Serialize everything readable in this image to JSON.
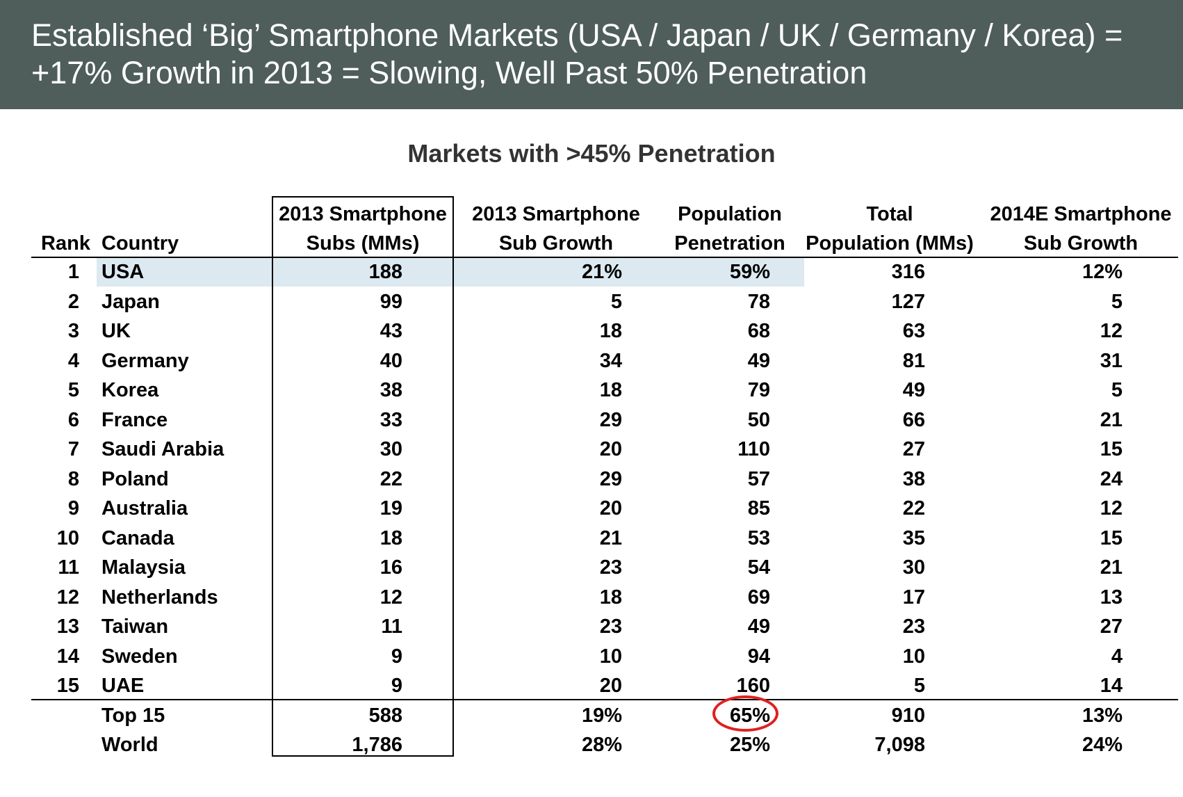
{
  "header": {
    "line1": "Established ‘Big’ Smartphone Markets (USA / Japan / UK / Germany / Korea) =",
    "line2": "+17% Growth in 2013 = Slowing, Well Past 50% Penetration"
  },
  "subtitle": "Markets with >45% Penetration",
  "columns": {
    "rank": "Rank",
    "country": "Country",
    "subs": [
      "2013 Smartphone",
      "Subs (MMs)"
    ],
    "growth": [
      "2013 Smartphone",
      "Sub Growth"
    ],
    "penetration": [
      "Population",
      "Penetration"
    ],
    "population": [
      "Total",
      "Population (MMs)"
    ],
    "growth2014": [
      "2014E Smartphone",
      "Sub Growth"
    ]
  },
  "rows": [
    {
      "rank": "1",
      "country": "USA",
      "subs": "188",
      "growth": "21%",
      "penetration": "59%",
      "population": "316",
      "growth2014": "12%"
    },
    {
      "rank": "2",
      "country": "Japan",
      "subs": "99",
      "growth": "5",
      "penetration": "78",
      "population": "127",
      "growth2014": "5"
    },
    {
      "rank": "3",
      "country": "UK",
      "subs": "43",
      "growth": "18",
      "penetration": "68",
      "population": "63",
      "growth2014": "12"
    },
    {
      "rank": "4",
      "country": "Germany",
      "subs": "40",
      "growth": "34",
      "penetration": "49",
      "population": "81",
      "growth2014": "31"
    },
    {
      "rank": "5",
      "country": "Korea",
      "subs": "38",
      "growth": "18",
      "penetration": "79",
      "population": "49",
      "growth2014": "5"
    },
    {
      "rank": "6",
      "country": "France",
      "subs": "33",
      "growth": "29",
      "penetration": "50",
      "population": "66",
      "growth2014": "21"
    },
    {
      "rank": "7",
      "country": "Saudi Arabia",
      "subs": "30",
      "growth": "20",
      "penetration": "110",
      "population": "27",
      "growth2014": "15"
    },
    {
      "rank": "8",
      "country": "Poland",
      "subs": "22",
      "growth": "29",
      "penetration": "57",
      "population": "38",
      "growth2014": "24"
    },
    {
      "rank": "9",
      "country": "Australia",
      "subs": "19",
      "growth": "20",
      "penetration": "85",
      "population": "22",
      "growth2014": "12"
    },
    {
      "rank": "10",
      "country": "Canada",
      "subs": "18",
      "growth": "21",
      "penetration": "53",
      "population": "35",
      "growth2014": "15"
    },
    {
      "rank": "11",
      "country": "Malaysia",
      "subs": "16",
      "growth": "23",
      "penetration": "54",
      "population": "30",
      "growth2014": "21"
    },
    {
      "rank": "12",
      "country": "Netherlands",
      "subs": "12",
      "growth": "18",
      "penetration": "69",
      "population": "17",
      "growth2014": "13"
    },
    {
      "rank": "13",
      "country": "Taiwan",
      "subs": "11",
      "growth": "23",
      "penetration": "49",
      "population": "23",
      "growth2014": "27"
    },
    {
      "rank": "14",
      "country": "Sweden",
      "subs": "9",
      "growth": "10",
      "penetration": "94",
      "population": "10",
      "growth2014": "4"
    },
    {
      "rank": "15",
      "country": "UAE",
      "subs": "9",
      "growth": "20",
      "penetration": "160",
      "population": "5",
      "growth2014": "14"
    }
  ],
  "totals": [
    {
      "rank": "",
      "country": "Top 15",
      "subs": "588",
      "growth": "19%",
      "penetration": "65%",
      "population": "910",
      "growth2014": "13%"
    },
    {
      "rank": "",
      "country": "World",
      "subs": "1,786",
      "growth": "28%",
      "penetration": "25%",
      "population": "7,098",
      "growth2014": "24%"
    }
  ],
  "colors": {
    "header_bg": "#4f5e5a",
    "highlight_row": "#dce9f0",
    "circle": "#e02020"
  }
}
